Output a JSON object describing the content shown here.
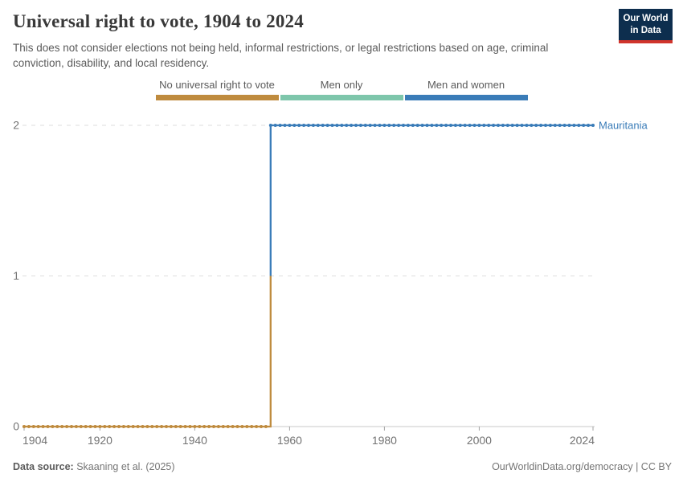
{
  "header": {
    "title": "Universal right to vote, 1904 to 2024",
    "subtitle": "This does not consider elections not being held, informal restrictions, or legal restrictions based on age, criminal conviction, disability, and local residency.",
    "logo": {
      "line1": "Our World",
      "line2": "in Data",
      "bg_color": "#0d2e4e",
      "accent_color": "#d0342c"
    }
  },
  "legend": {
    "items": [
      {
        "label": "No universal right to vote",
        "color": "#bf8b3e"
      },
      {
        "label": "Men only",
        "color": "#7ec6ab"
      },
      {
        "label": "Men and women",
        "color": "#3a7cb8"
      }
    ]
  },
  "chart_data": {
    "type": "line",
    "style": "step-with-year-markers",
    "title": "Universal right to vote, 1904 to 2024",
    "entity": "Mauritania",
    "entity_color": "#3a7cb8",
    "xlim": [
      1904,
      2024
    ],
    "ylim": [
      0,
      2
    ],
    "x_ticks": [
      1904,
      1920,
      1940,
      1960,
      1980,
      2000,
      2024
    ],
    "y_ticks": [
      0,
      1,
      2
    ],
    "grid": "dashed-horizontal",
    "segments": [
      {
        "start_year": 1904,
        "end_year": 1955,
        "value": 0,
        "status": "No universal right to vote",
        "color": "#bf8b3e"
      },
      {
        "start_year": 1956,
        "end_year": 2024,
        "value": 2,
        "status": "Men and women",
        "color": "#3a7cb8"
      }
    ],
    "riser": {
      "year": 1956,
      "from": 0,
      "to": 2,
      "color_below_1": "#bf8b3e",
      "color_above_1": "#3a7cb8"
    },
    "colors": {
      "gridline": "#dedede",
      "axis": "#c8c8c8",
      "tick": "#a3a3a3",
      "tick_label": "#737373"
    }
  },
  "footer": {
    "source_label": "Data source:",
    "source_text": "Skaaning et al. (2025)",
    "origin_text": "OurWorldinData.org/democracy | CC BY"
  }
}
